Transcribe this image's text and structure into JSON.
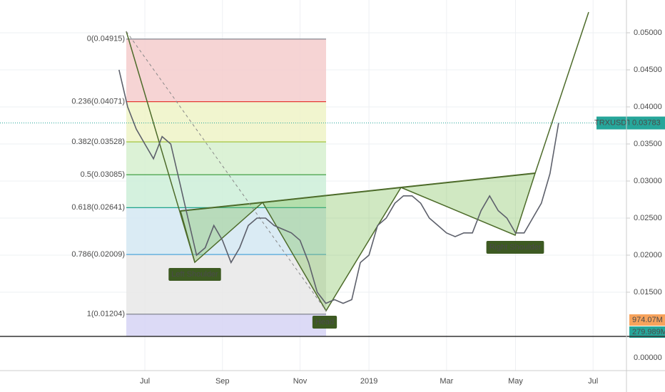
{
  "chart_data": {
    "type": "line",
    "categories": [
      null,
      null,
      null,
      "Jul",
      null,
      null,
      null,
      null,
      null,
      null,
      null,
      null,
      "Sep",
      null,
      null,
      null,
      null,
      null,
      null,
      null,
      null,
      "Nov",
      null,
      null,
      null,
      null,
      null,
      null,
      null,
      "2019",
      null,
      null,
      null,
      null,
      null,
      null,
      null,
      null,
      "Mar",
      null,
      null,
      null,
      null,
      null,
      null,
      null,
      "May",
      null,
      null,
      null,
      null,
      null,
      null,
      null,
      null,
      "Jul"
    ],
    "series": [
      {
        "name": "TRXUSDT",
        "color": "#5d606b",
        "values": [
          0.045,
          0.04,
          0.037,
          0.035,
          0.033,
          0.036,
          0.035,
          0.03,
          0.025,
          0.02,
          0.021,
          0.024,
          0.022,
          0.019,
          0.021,
          0.024,
          0.025,
          0.025,
          0.024,
          0.0235,
          0.023,
          0.022,
          0.019,
          0.015,
          0.0135,
          0.014,
          0.0135,
          0.014,
          0.019,
          0.02,
          0.024,
          0.025,
          0.027,
          0.028,
          0.028,
          0.027,
          0.025,
          0.024,
          0.023,
          0.0225,
          0.023,
          0.023,
          0.026,
          0.028,
          0.026,
          0.025,
          0.023,
          0.023,
          0.025,
          0.027,
          0.031,
          0.03783,
          null,
          null,
          null,
          null
        ]
      }
    ],
    "last_price": 0.03783,
    "ylim": [
      0.00904,
      0.05442
    ],
    "yticks": [
      {
        "value": 0.015,
        "label": "0.01500"
      },
      {
        "value": 0.02,
        "label": "0.02000"
      },
      {
        "value": 0.025,
        "label": "0.02500"
      },
      {
        "value": 0.03,
        "label": "0.03000"
      },
      {
        "value": 0.035,
        "label": "0.03500"
      },
      {
        "value": 0.04,
        "label": "0.04000"
      },
      {
        "value": 0.045,
        "label": "0.04500"
      },
      {
        "value": 0.05,
        "label": "0.05000"
      }
    ],
    "grid": true,
    "fibonacci": [
      {
        "label": "0(0.04915)",
        "value": 0.04915,
        "color": "#787b86",
        "fill": "#f4cccc"
      },
      {
        "label": "0.236(0.04071)",
        "value": 0.04071,
        "color": "#e53935",
        "fill": "#eef3c7"
      },
      {
        "label": "0.382(0.03528)",
        "value": 0.03528,
        "color": "#9bbf2e",
        "fill": "#d6f0cf"
      },
      {
        "label": "0.5(0.03085)",
        "value": 0.03085,
        "color": "#43a047",
        "fill": "#cdeed8"
      },
      {
        "label": "0.618(0.02641)",
        "value": 0.02641,
        "color": "#089981",
        "fill": "#d3e8f2"
      },
      {
        "label": "0.786(0.02009)",
        "value": 0.02009,
        "color": "#3f9fd8",
        "fill": "#e8e8e8"
      },
      {
        "label": "1(0.01204)",
        "value": 0.01204,
        "color": "#787b86",
        "fill": "#d6d3f4"
      }
    ],
    "annotations": [
      {
        "text": "Left Shoulder"
      },
      {
        "text": "Head"
      },
      {
        "text": "Right Shoulder"
      }
    ],
    "volume_labels": [
      {
        "label": "974.07M",
        "color": "#f7a35c"
      },
      {
        "label": "279.989M",
        "color": "#26a69a"
      }
    ],
    "indicator_yticks": [
      {
        "value": 0,
        "label": "0.00000"
      }
    ]
  }
}
